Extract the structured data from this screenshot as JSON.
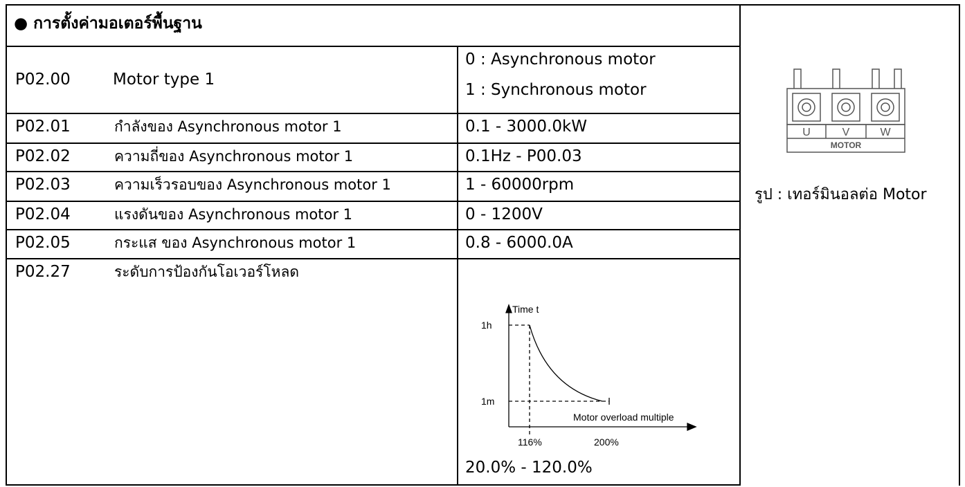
{
  "header": {
    "title": "● การตั้งค่ามอเตอร์พื้นฐาน"
  },
  "rows": [
    {
      "code": "P02.00",
      "name": "Motor type 1",
      "range": [
        "0 : Asynchronous motor",
        "1 : Synchronous motor"
      ]
    },
    {
      "code": "P02.01",
      "name": "กำลังของ Asynchronous motor 1",
      "range": [
        "0.1 - 3000.0kW"
      ]
    },
    {
      "code": "P02.02",
      "name": "ความถี่ของ Asynchronous motor 1",
      "range": [
        "0.1Hz - P00.03"
      ]
    },
    {
      "code": "P02.03",
      "name": "ความเร็วรอบของ Asynchronous motor 1",
      "range": [
        "1 - 60000rpm"
      ]
    },
    {
      "code": "P02.04",
      "name": "แรงดันของ Asynchronous motor 1",
      "range": [
        "0 - 1200V"
      ]
    },
    {
      "code": "P02.05",
      "name": "กระแส ของ Asynchronous motor 1",
      "range": [
        "0.8 - 6000.0A"
      ]
    },
    {
      "code": "P02.27",
      "name": "ระดับการป้องกันโอเวอร์โหลด",
      "range": [
        "20.0% - 120.0%"
      ]
    }
  ],
  "overload_graph": {
    "y_axis_label": "Time t",
    "y_labels": [
      "1h",
      "1m"
    ],
    "x_axis_label": "Motor overload multiple",
    "x_labels": [
      "116%",
      "200%"
    ]
  },
  "terminal": {
    "labels": [
      "U",
      "V",
      "W"
    ],
    "name": "MOTOR",
    "caption": "รูป : เทอร์มินอลต่อ Motor"
  }
}
